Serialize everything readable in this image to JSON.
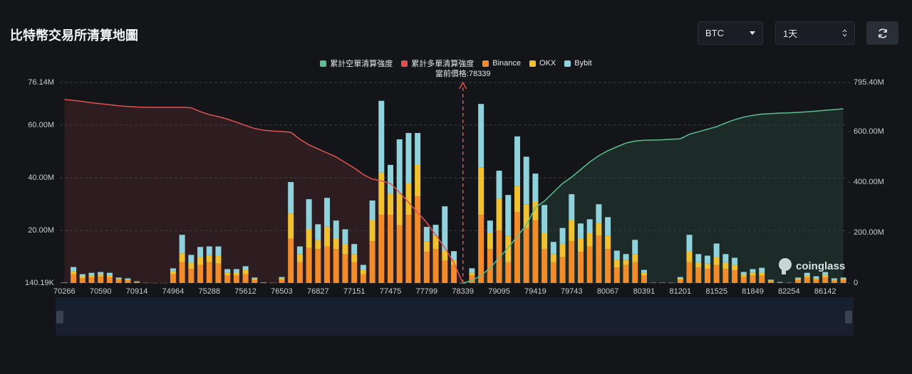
{
  "title": "比特幣交易所清算地圖",
  "controls": {
    "symbol": "BTC",
    "period": "1天"
  },
  "watermark": "coinglass",
  "chart_data": {
    "type": "bar",
    "current_price": 78339,
    "current_price_label": "當前價格:78339",
    "categories": [
      70266,
      null,
      null,
      null,
      70590,
      null,
      null,
      null,
      70914,
      null,
      null,
      null,
      74964,
      null,
      null,
      null,
      75288,
      null,
      null,
      null,
      75612,
      null,
      null,
      null,
      76503,
      null,
      null,
      null,
      76827,
      null,
      null,
      null,
      77151,
      null,
      null,
      null,
      77475,
      null,
      null,
      null,
      77799,
      null,
      null,
      null,
      78339,
      null,
      null,
      null,
      79095,
      null,
      null,
      null,
      79419,
      null,
      null,
      null,
      79743,
      null,
      null,
      null,
      80067,
      null,
      null,
      null,
      80391,
      null,
      null,
      null,
      81201,
      null,
      null,
      null,
      81525,
      null,
      null,
      null,
      81849,
      null,
      null,
      null,
      82254,
      null,
      null,
      null,
      86142,
      null,
      null
    ],
    "ylim": [
      0.14019,
      76.14
    ],
    "yticks": [
      {
        "value": 0.14019,
        "label": "140.19K"
      },
      {
        "value": 20,
        "label": "20.00M"
      },
      {
        "value": 40,
        "label": "40.00M"
      },
      {
        "value": 60,
        "label": "60.00M"
      },
      {
        "value": 76.14,
        "label": "76.14M"
      }
    ],
    "y2lim": [
      0,
      795.4
    ],
    "y2ticks": [
      0,
      {
        "value": 200,
        "label": "200.00M"
      },
      {
        "value": 400,
        "label": "400.00M"
      },
      {
        "value": 600,
        "label": "600.00M"
      },
      {
        "value": 795.4,
        "label": "795.40M"
      }
    ],
    "grid": true,
    "series": [
      {
        "name": "累計空單清算強度",
        "type": "line",
        "axis": "y2",
        "color": "#5cc08e",
        "values": [
          null,
          null,
          null,
          null,
          null,
          null,
          null,
          null,
          null,
          null,
          null,
          null,
          null,
          null,
          null,
          null,
          null,
          null,
          null,
          null,
          null,
          null,
          null,
          null,
          null,
          null,
          null,
          null,
          null,
          null,
          null,
          null,
          null,
          null,
          null,
          null,
          null,
          null,
          null,
          null,
          null,
          null,
          null,
          null,
          0,
          10,
          30,
          60,
          100,
          140,
          185,
          230,
          300,
          325,
          360,
          395,
          420,
          450,
          480,
          505,
          525,
          540,
          555,
          563,
          566,
          567,
          568,
          570,
          572,
          590,
          600,
          610,
          620,
          635,
          648,
          658,
          665,
          670,
          672,
          674,
          675,
          677,
          679,
          682,
          685,
          688,
          691
        ]
      },
      {
        "name": "累計多單清算強度",
        "type": "line",
        "axis": "y2",
        "color": "#e05252",
        "values": [
          728,
          724,
          720,
          715,
          711,
          707,
          703,
          700,
          698,
          697,
          697,
          697,
          697,
          697,
          695,
          680,
          668,
          660,
          650,
          638,
          625,
          613,
          606,
          603,
          601,
          598,
          570,
          548,
          532,
          516,
          500,
          478,
          456,
          430,
          412,
          405,
          395,
          360,
          320,
          280,
          240,
          190,
          140,
          80,
          0,
          null,
          null,
          null,
          null,
          null,
          null,
          null,
          null,
          null,
          null,
          null,
          null,
          null,
          null,
          null,
          null,
          null,
          null,
          null,
          null,
          null,
          null,
          null,
          null,
          null,
          null,
          null,
          null,
          null,
          null,
          null,
          null,
          null,
          null,
          null,
          null,
          null,
          null,
          null,
          null,
          null,
          null
        ]
      },
      {
        "name": "Binance",
        "type": "bar",
        "color": "#f08c2c",
        "values": [
          0.2,
          3.5,
          2,
          2.3,
          2.5,
          2.3,
          1.3,
          1.1,
          0.5,
          0.1,
          0.1,
          0.1,
          3.5,
          8.1,
          5.5,
          7,
          8,
          7.5,
          3,
          3,
          3.5,
          1.2,
          0.3,
          0.1,
          1.3,
          17,
          8,
          13.5,
          13,
          14,
          13,
          11,
          8,
          3.5,
          16,
          26,
          26,
          22,
          26,
          33,
          12,
          13,
          8.6,
          7,
          0,
          3,
          26,
          13,
          20,
          8,
          27,
          21,
          24,
          13,
          8,
          10,
          16,
          12,
          14,
          18,
          13,
          6,
          7,
          8,
          3,
          0.2,
          0.2,
          0.2,
          1.4,
          8,
          6,
          5.5,
          7,
          5.5,
          5,
          2.4,
          2.9,
          3,
          0.8,
          0.3,
          0.2,
          1.2,
          2.2,
          1.5,
          2.3,
          1,
          1.2
        ]
      },
      {
        "name": "OKX",
        "type": "bar",
        "color": "#f0c232",
        "values": [
          0.05,
          1,
          0.7,
          0.7,
          0.8,
          0.7,
          0.4,
          0.3,
          0.1,
          0.05,
          0.03,
          0.03,
          1,
          3.3,
          2.3,
          3,
          2.7,
          3,
          1,
          1.2,
          1.5,
          0.5,
          0.05,
          0.05,
          0.5,
          9.5,
          3,
          7,
          3.5,
          7.5,
          4,
          4,
          3,
          1.5,
          8,
          16,
          8,
          12,
          12,
          12,
          4,
          5,
          3.8,
          2,
          0,
          1,
          18,
          6,
          12,
          10,
          10,
          9,
          7,
          6,
          3,
          5,
          8,
          5,
          5,
          5,
          5,
          3,
          2,
          3,
          1,
          0.05,
          0.05,
          0.05,
          0.5,
          4,
          2,
          2,
          3,
          2.5,
          2,
          0.9,
          1.1,
          1.2,
          0.3,
          0.1,
          0.05,
          0.5,
          0.8,
          0.5,
          0.9,
          0.4,
          0.5
        ]
      },
      {
        "name": "Bybit",
        "type": "bar",
        "color": "#90d2dc",
        "values": [
          0.1,
          1.7,
          0.8,
          1,
          1,
          1,
          0.5,
          0.5,
          0.2,
          0.05,
          0.02,
          0.02,
          1.2,
          7,
          3,
          3.8,
          3.3,
          3.5,
          1.4,
          1.2,
          1.5,
          0.5,
          0.05,
          0.05,
          0.6,
          11.9,
          3,
          11.4,
          5.9,
          10.9,
          6.8,
          5.5,
          3.9,
          2,
          7.4,
          27.2,
          10.9,
          20.6,
          19,
          12,
          5.4,
          4.2,
          16.8,
          3.2,
          0,
          1.7,
          24,
          4.8,
          10.7,
          15.5,
          18.7,
          18,
          10.6,
          10.7,
          4.7,
          6,
          9.8,
          5.7,
          5.3,
          7,
          7.1,
          3.4,
          2.1,
          5.5,
          1.1,
          0.05,
          0.05,
          0.05,
          0.5,
          6.4,
          3.1,
          3,
          5.1,
          3.1,
          2.7,
          1,
          1.4,
          1.7,
          0.3,
          0.1,
          0.05,
          0.5,
          1,
          0.7,
          1.1,
          0.5,
          0.5
        ]
      }
    ]
  }
}
